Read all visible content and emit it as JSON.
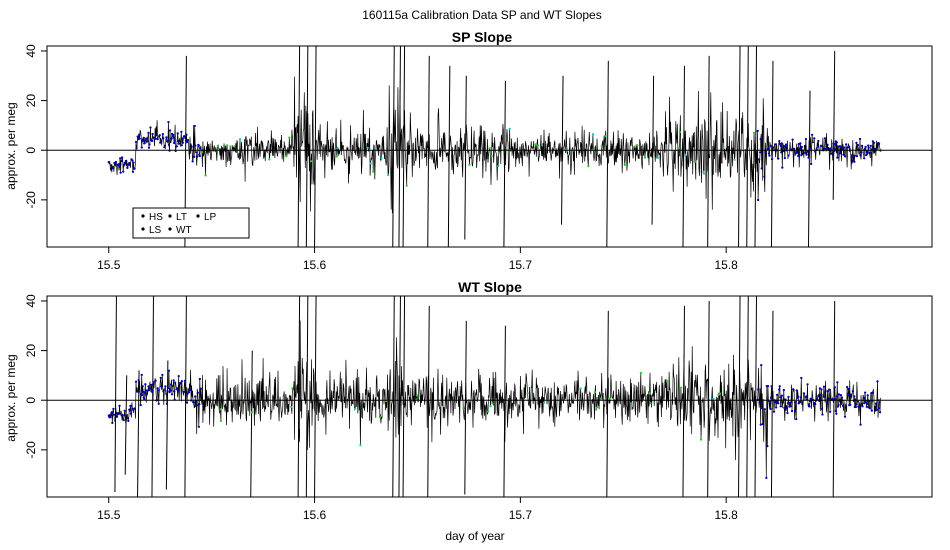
{
  "page": {
    "title": "160115a   Calibration Data SP and WT Slopes",
    "xlabel": "day of year"
  },
  "chart_data": [
    {
      "type": "scatter",
      "title": "SP Slope",
      "xlabel": "",
      "ylabel": "approx. per meg",
      "xlim": [
        15.47,
        15.9
      ],
      "ylim": [
        -39,
        42
      ],
      "x_ticks": [
        15.5,
        15.6,
        15.7,
        15.8
      ],
      "y_ticks": [
        -20,
        0,
        20,
        40
      ],
      "x_tick_labels": [
        "15.5",
        "15.6",
        "15.7",
        "15.8"
      ],
      "y_tick_labels": [
        "-20",
        "0",
        "20",
        "40"
      ],
      "hline": 0,
      "grid": false,
      "x_range": [
        15.5,
        15.875
      ],
      "legend": {
        "placement": "bottom-left",
        "entries": [
          {
            "label": "HS",
            "color": "#000000"
          },
          {
            "label": "LS",
            "color": "#22cc22"
          },
          {
            "label": "LT",
            "color": "#00cccc"
          },
          {
            "label": "WT",
            "color": "#000000"
          },
          {
            "label": "LP",
            "color": "#000000"
          }
        ]
      },
      "series_colors": {
        "WT": "#000000",
        "HS": "#0000aa",
        "LS": "#22cc22",
        "LT": "#00cccc"
      },
      "segments": [
        {
          "x_start": 15.5,
          "x_end": 15.513,
          "center": -6,
          "amplitude": 6
        },
        {
          "x_start": 15.513,
          "x_end": 15.54,
          "center": 4,
          "amplitude": 10
        },
        {
          "x_start": 15.54,
          "x_end": 15.59,
          "center": 0,
          "amplitude": 14
        },
        {
          "x_start": 15.59,
          "x_end": 15.6,
          "center": 0,
          "amplitude": 40
        },
        {
          "x_start": 15.6,
          "x_end": 15.635,
          "center": 0,
          "amplitude": 16
        },
        {
          "x_start": 15.635,
          "x_end": 15.645,
          "center": 0,
          "amplitude": 40
        },
        {
          "x_start": 15.645,
          "x_end": 15.7,
          "center": 0,
          "amplitude": 18
        },
        {
          "x_start": 15.7,
          "x_end": 15.77,
          "center": 0,
          "amplitude": 14
        },
        {
          "x_start": 15.77,
          "x_end": 15.82,
          "center": 0,
          "amplitude": 30
        },
        {
          "x_start": 15.82,
          "x_end": 15.875,
          "center": 0,
          "amplitude": 10
        }
      ],
      "spikes": [
        {
          "x": 15.537,
          "y_low": -39,
          "y_high": 38
        },
        {
          "x": 15.592,
          "y_low": -39,
          "y_high": 42
        },
        {
          "x": 15.596,
          "y_low": -39,
          "y_high": 42
        },
        {
          "x": 15.6,
          "y_low": -39,
          "y_high": 42
        },
        {
          "x": 15.638,
          "y_low": -39,
          "y_high": 42
        },
        {
          "x": 15.641,
          "y_low": -39,
          "y_high": 42
        },
        {
          "x": 15.643,
          "y_low": -39,
          "y_high": 42
        },
        {
          "x": 15.655,
          "y_low": -39,
          "y_high": 38
        },
        {
          "x": 15.665,
          "y_low": -39,
          "y_high": 34
        },
        {
          "x": 15.673,
          "y_low": -36,
          "y_high": 30
        },
        {
          "x": 15.692,
          "y_low": -39,
          "y_high": 28
        },
        {
          "x": 15.72,
          "y_low": -30,
          "y_high": 30
        },
        {
          "x": 15.742,
          "y_low": -39,
          "y_high": 36
        },
        {
          "x": 15.764,
          "y_low": -30,
          "y_high": 30
        },
        {
          "x": 15.779,
          "y_low": -39,
          "y_high": 34
        },
        {
          "x": 15.791,
          "y_low": -39,
          "y_high": 38
        },
        {
          "x": 15.806,
          "y_low": -39,
          "y_high": 42
        },
        {
          "x": 15.81,
          "y_low": -39,
          "y_high": 42
        },
        {
          "x": 15.814,
          "y_low": -39,
          "y_high": 42
        },
        {
          "x": 15.822,
          "y_low": -39,
          "y_high": 36
        },
        {
          "x": 15.84,
          "y_low": -39,
          "y_high": 24
        },
        {
          "x": 15.852,
          "y_low": -20,
          "y_high": 40
        }
      ]
    },
    {
      "type": "scatter",
      "title": "WT Slope",
      "xlabel": "day of year",
      "ylabel": "approx. per meg",
      "xlim": [
        15.47,
        15.9
      ],
      "ylim": [
        -39,
        42
      ],
      "x_ticks": [
        15.5,
        15.6,
        15.7,
        15.8
      ],
      "y_ticks": [
        -20,
        0,
        20,
        40
      ],
      "x_tick_labels": [
        "15.5",
        "15.6",
        "15.7",
        "15.8"
      ],
      "y_tick_labels": [
        "-20",
        "0",
        "20",
        "40"
      ],
      "hline": 0,
      "grid": false,
      "x_range": [
        15.5,
        15.875
      ],
      "series_colors": {
        "WT": "#000000",
        "HS": "#0000aa",
        "LS": "#22cc22",
        "LT": "#00cccc"
      },
      "segments": [
        {
          "x_start": 15.5,
          "x_end": 15.513,
          "center": -6,
          "amplitude": 7
        },
        {
          "x_start": 15.513,
          "x_end": 15.54,
          "center": 4,
          "amplitude": 11
        },
        {
          "x_start": 15.54,
          "x_end": 15.59,
          "center": 0,
          "amplitude": 18
        },
        {
          "x_start": 15.59,
          "x_end": 15.6,
          "center": 0,
          "amplitude": 40
        },
        {
          "x_start": 15.6,
          "x_end": 15.635,
          "center": 0,
          "amplitude": 20
        },
        {
          "x_start": 15.635,
          "x_end": 15.645,
          "center": 0,
          "amplitude": 40
        },
        {
          "x_start": 15.645,
          "x_end": 15.7,
          "center": 0,
          "amplitude": 20
        },
        {
          "x_start": 15.7,
          "x_end": 15.77,
          "center": 0,
          "amplitude": 16
        },
        {
          "x_start": 15.77,
          "x_end": 15.82,
          "center": 0,
          "amplitude": 30
        },
        {
          "x_start": 15.82,
          "x_end": 15.875,
          "center": 0,
          "amplitude": 12
        }
      ],
      "spikes": [
        {
          "x": 15.503,
          "y_low": -37,
          "y_high": 42
        },
        {
          "x": 15.508,
          "y_low": -30,
          "y_high": 10
        },
        {
          "x": 15.514,
          "y_low": -39,
          "y_high": 12
        },
        {
          "x": 15.521,
          "y_low": -39,
          "y_high": 42
        },
        {
          "x": 15.528,
          "y_low": -36,
          "y_high": 16
        },
        {
          "x": 15.537,
          "y_low": -39,
          "y_high": 42
        },
        {
          "x": 15.569,
          "y_low": -39,
          "y_high": 20
        },
        {
          "x": 15.592,
          "y_low": -39,
          "y_high": 42
        },
        {
          "x": 15.596,
          "y_low": -39,
          "y_high": 42
        },
        {
          "x": 15.6,
          "y_low": -39,
          "y_high": 42
        },
        {
          "x": 15.638,
          "y_low": -39,
          "y_high": 42
        },
        {
          "x": 15.641,
          "y_low": -39,
          "y_high": 42
        },
        {
          "x": 15.643,
          "y_low": -39,
          "y_high": 42
        },
        {
          "x": 15.655,
          "y_low": -39,
          "y_high": 38
        },
        {
          "x": 15.673,
          "y_low": -38,
          "y_high": 32
        },
        {
          "x": 15.692,
          "y_low": -39,
          "y_high": 30
        },
        {
          "x": 15.742,
          "y_low": -39,
          "y_high": 36
        },
        {
          "x": 15.779,
          "y_low": -39,
          "y_high": 38
        },
        {
          "x": 15.791,
          "y_low": -39,
          "y_high": 40
        },
        {
          "x": 15.806,
          "y_low": -39,
          "y_high": 42
        },
        {
          "x": 15.81,
          "y_low": -39,
          "y_high": 42
        },
        {
          "x": 15.814,
          "y_low": -39,
          "y_high": 42
        },
        {
          "x": 15.822,
          "y_low": -39,
          "y_high": 36
        },
        {
          "x": 15.852,
          "y_low": -39,
          "y_high": 40
        }
      ]
    }
  ]
}
